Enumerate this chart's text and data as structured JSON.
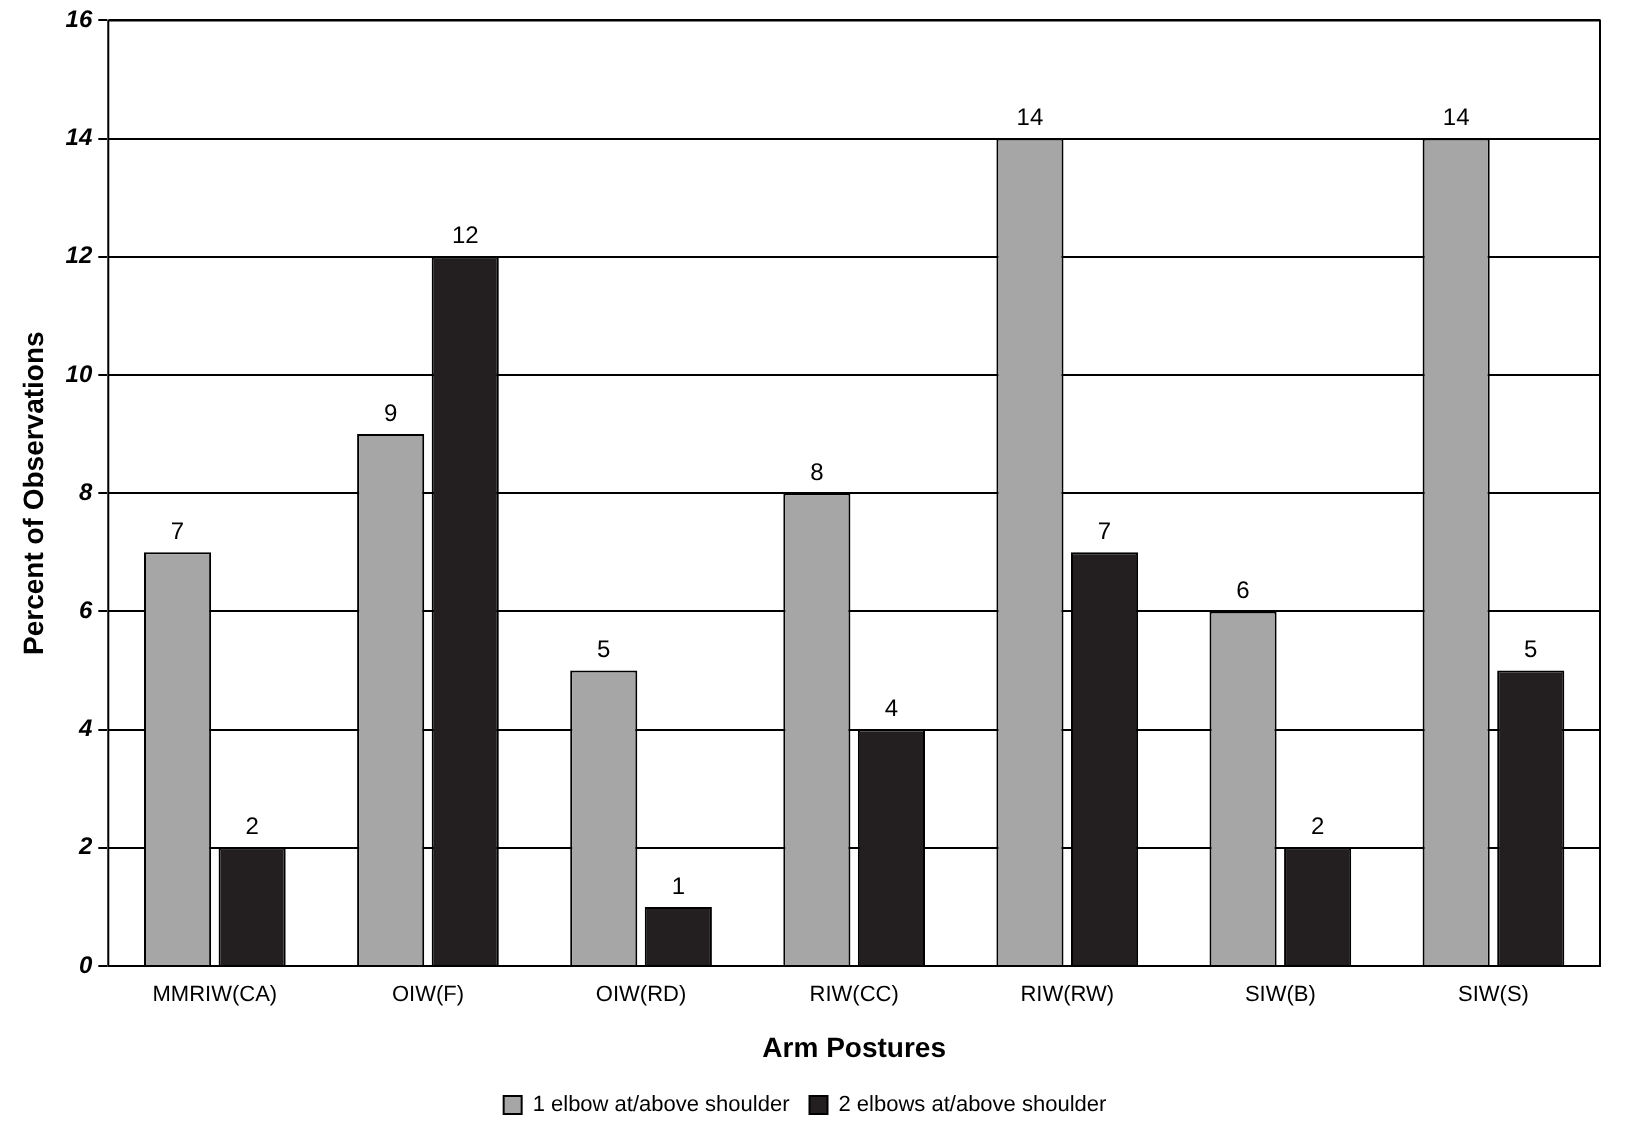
{
  "chart_data": {
    "type": "bar",
    "xlabel": "Arm Postures",
    "ylabel": "Percent of Observations",
    "categories": [
      "MMRIW(CA)",
      "OIW(F)",
      "OIW(RD)",
      "RIW(CC)",
      "RIW(RW)",
      "SIW(B)",
      "SIW(S)"
    ],
    "series": [
      {
        "name": "1 elbow at/above shoulder",
        "color": "#a6a6a6",
        "values": [
          7,
          9,
          5,
          8,
          14,
          6,
          14
        ]
      },
      {
        "name": "2 elbows at/above shoulder",
        "color": "#231f20",
        "values": [
          2,
          12,
          1,
          4,
          7,
          2,
          5
        ]
      }
    ],
    "ylim": [
      0,
      16
    ],
    "yticks": [
      0,
      2,
      4,
      6,
      8,
      10,
      12,
      14,
      16
    ],
    "grid": "y",
    "legend": "bottom",
    "data_labels": true
  }
}
